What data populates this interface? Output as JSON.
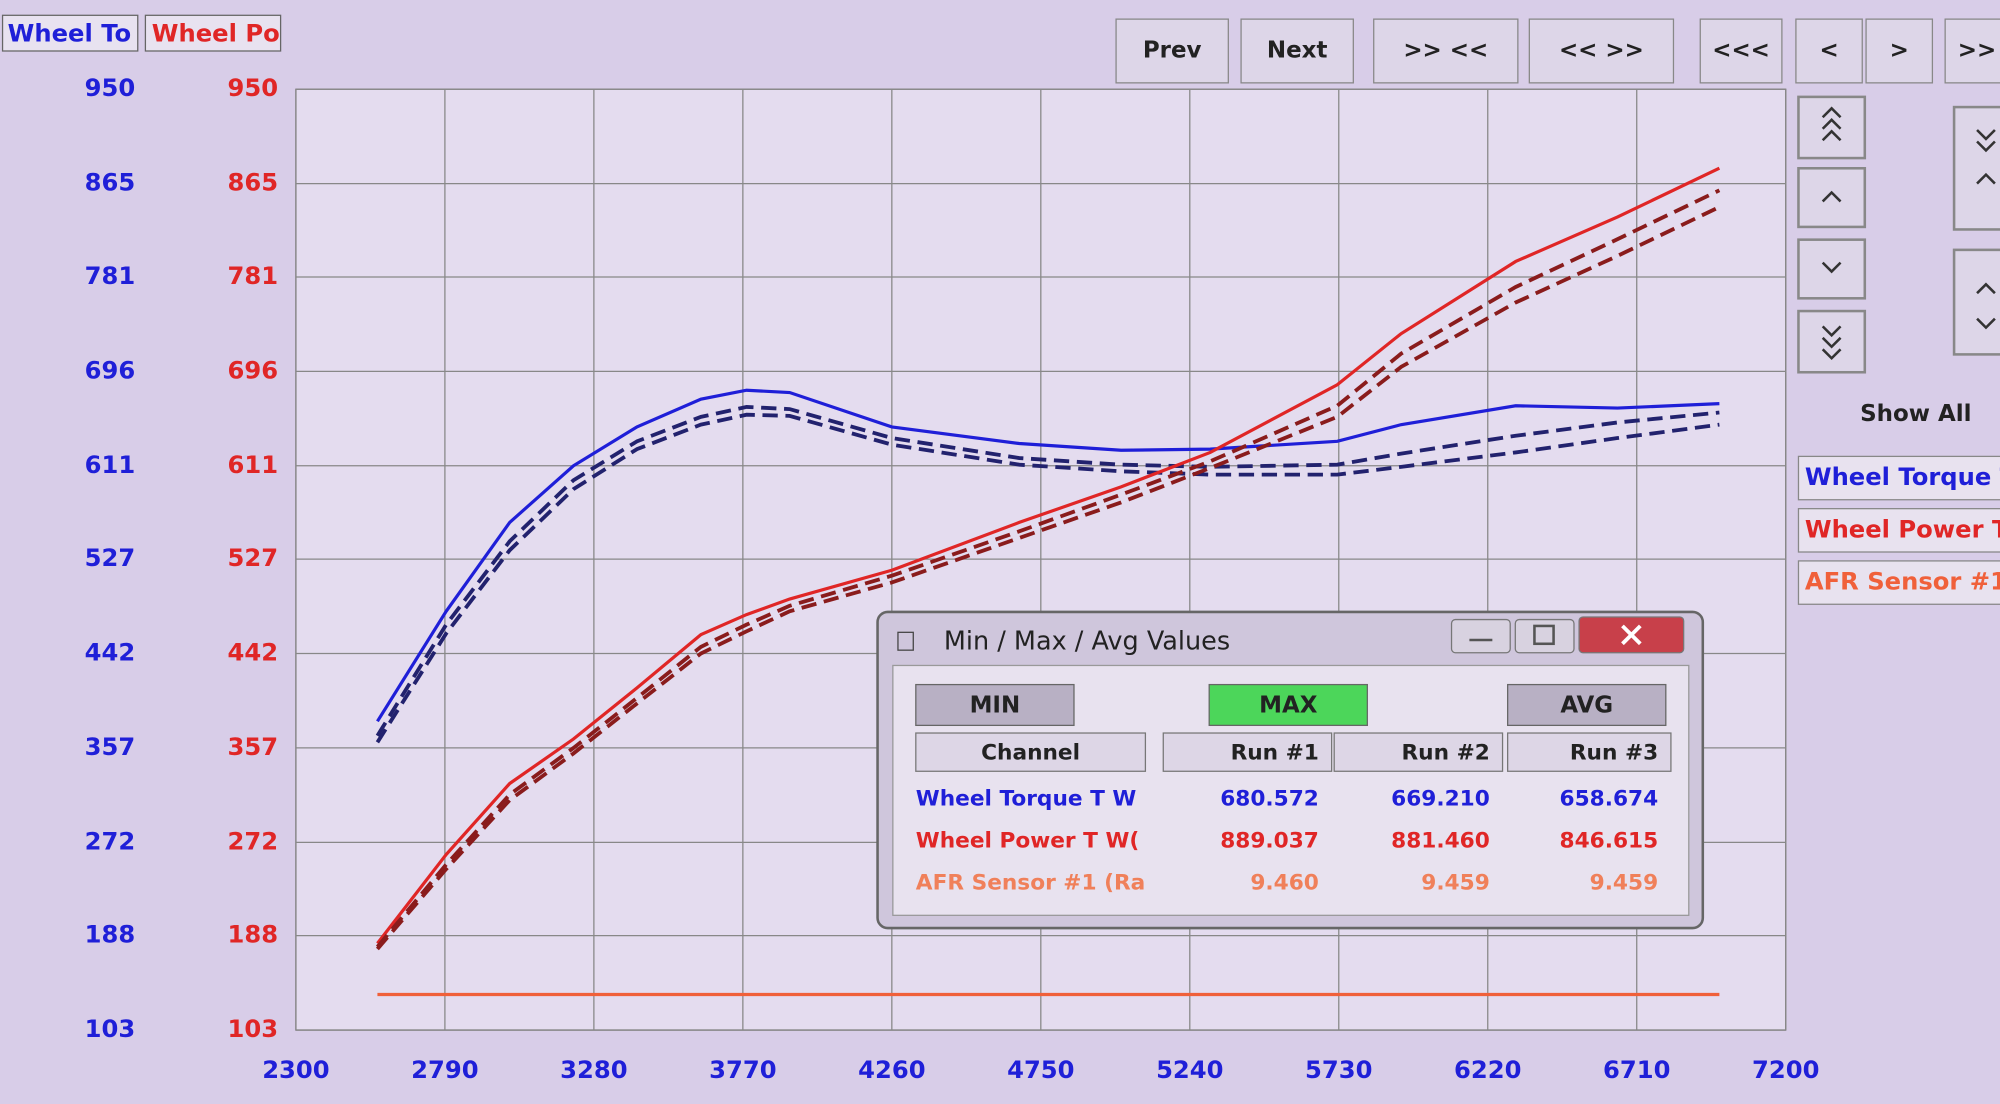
{
  "chart_data": {
    "type": "line",
    "y_label": "Wheel To",
    "y2_label": "Wheel Po",
    "x": [
      2568,
      2794,
      3003,
      3213,
      3422,
      3632,
      3782,
      3924,
      4260,
      4679,
      5014,
      5307,
      5725,
      5935,
      6312,
      6647,
      6982
    ],
    "xlim": [
      2300,
      7200
    ],
    "xticks": [
      2300,
      2790,
      3280,
      3770,
      4260,
      4750,
      5240,
      5730,
      6220,
      6710,
      7200
    ],
    "ylim": [
      103,
      950
    ],
    "yticks": [
      103,
      188,
      272,
      357,
      442,
      527,
      611,
      696,
      781,
      865,
      950
    ],
    "y2lim": [
      103,
      950
    ],
    "y2ticks": [
      103,
      188,
      272,
      357,
      442,
      527,
      611,
      696,
      781,
      865,
      950
    ],
    "grid": true,
    "series": [
      {
        "name": "Wheel Torque T",
        "color": "#1f1fd8",
        "dash": false,
        "values": [
          381,
          480,
          560,
          611,
          646,
          671,
          679,
          677,
          646,
          631,
          625,
          626,
          633,
          648,
          665,
          663,
          667
        ]
      },
      {
        "color": "#22226e",
        "dash": true,
        "values": [
          368,
          468,
          543,
          598,
          633,
          655,
          664,
          662,
          636,
          618,
          612,
          610,
          612,
          622,
          638,
          650,
          659
        ]
      },
      {
        "color": "#22226e",
        "dash": true,
        "values": [
          362,
          460,
          535,
          590,
          626,
          648,
          657,
          656,
          630,
          612,
          606,
          603,
          603,
          610,
          623,
          636,
          648
        ]
      },
      {
        "name": "Wheel Power T",
        "color": "#e02626",
        "dash": false,
        "axis": "y2",
        "values": [
          181,
          261,
          325,
          365,
          411,
          459,
          477,
          491,
          517,
          560,
          592,
          623,
          684,
          730,
          795,
          835,
          879
        ]
      },
      {
        "color": "#8a1c1c",
        "dash": true,
        "axis": "y2",
        "values": [
          178,
          252,
          315,
          357,
          402,
          448,
          468,
          485,
          512,
          552,
          585,
          615,
          665,
          712,
          772,
          815,
          859
        ]
      },
      {
        "color": "#8a1c1c",
        "dash": true,
        "axis": "y2",
        "values": [
          176,
          248,
          310,
          352,
          397,
          442,
          462,
          480,
          506,
          546,
          578,
          609,
          655,
          700,
          758,
          800,
          844
        ]
      },
      {
        "name": "AFR Sensor #1",
        "color": "#f0603a",
        "dash": false,
        "values": [
          135,
          135,
          135,
          135,
          135,
          135,
          135,
          135,
          135,
          135,
          135,
          135,
          135,
          135,
          135,
          135,
          135
        ]
      }
    ]
  },
  "toolbar": {
    "buttons": [
      "Prev",
      "Next",
      ">> <<",
      "<< >>",
      "<<<",
      "<",
      ">",
      ">>"
    ]
  },
  "side_panel": {
    "show_all": "Show All"
  },
  "dialog": {
    "title": "Min / Max / Avg Values",
    "buttons": [
      "MIN",
      "MAX",
      "AVG"
    ],
    "header": [
      "Channel",
      "Run #1",
      "Run #2",
      "Run #3"
    ],
    "rows": [
      {
        "cells": [
          "Wheel Torque T W",
          "680.572",
          "669.210",
          "658.674"
        ],
        "color": "#1f1fd8"
      },
      {
        "cells": [
          "Wheel Power T W(",
          "889.037",
          "881.460",
          "846.615"
        ],
        "color": "#e02626"
      },
      {
        "cells": [
          "AFR Sensor #1 (Ra",
          "9.460",
          "9.459",
          "9.459"
        ],
        "color": "#f0805a"
      }
    ]
  }
}
